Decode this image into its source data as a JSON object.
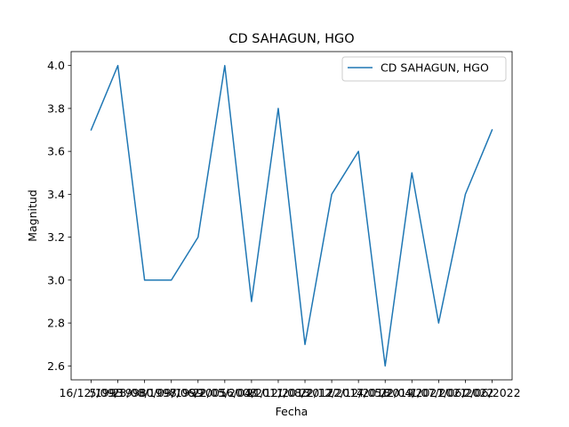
{
  "chart_data": {
    "type": "line",
    "title": "CD SAHAGUN, HGO",
    "xlabel": "Fecha",
    "ylabel": "Magnitud",
    "ylim": [
      2.535,
      4.065
    ],
    "yticks": [
      2.6,
      2.8,
      3.0,
      3.2,
      3.4,
      3.6,
      3.8,
      4.0
    ],
    "ytick_labels": [
      "2.6",
      "2.8",
      "3.0",
      "3.2",
      "3.4",
      "3.6",
      "3.8",
      "4.0"
    ],
    "x": [
      "16/12/1993",
      "5/09/1998",
      "23/08/1998",
      "30/09/1999",
      "7/06/2005",
      "22/05/2008",
      "16/04/2011",
      "21/12/2013",
      "1/08/2017",
      "22/12/2017",
      "22/12/2018",
      "4/05/2019",
      "22/04/2021",
      "1/07/2021",
      "7/06/2022",
      "2/06/2022"
    ],
    "xtick_labels": [
      "16/12/1993",
      "5/09/1998",
      "23/08/1998",
      "30/09/1999",
      "7/06/2005",
      "22/05/2008",
      "16/04/2011",
      "21/12/2013",
      "1/08/2017",
      "22/12/2017",
      "22/12/2018",
      "4/05/2019",
      "22/04/2021",
      "1/07/2021",
      "7/06/2022",
      "2/06/2022"
    ],
    "series": [
      {
        "name": "CD SAHAGUN, HGO",
        "color": "#1f77b4",
        "values": [
          3.7,
          4.0,
          3.0,
          3.0,
          3.2,
          4.0,
          2.9,
          3.8,
          2.7,
          3.4,
          3.6,
          2.6,
          3.5,
          2.8,
          3.4,
          3.7
        ]
      }
    ],
    "legend": {
      "label": "CD SAHAGUN, HGO",
      "placement": "top-right"
    },
    "grid": false
  }
}
